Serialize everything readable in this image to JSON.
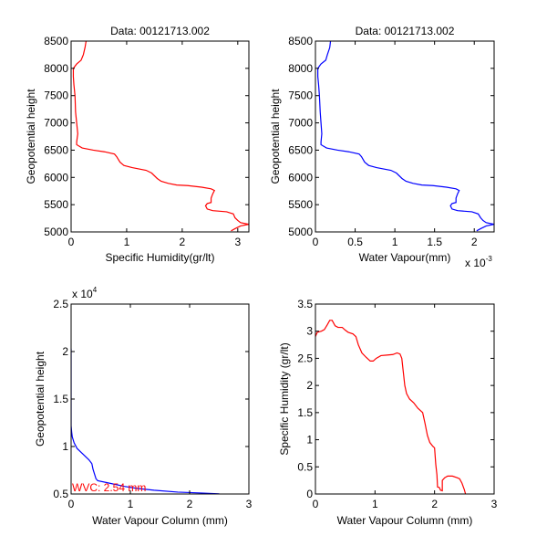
{
  "figure": {
    "background": "#ffffff"
  },
  "chart_data": [
    {
      "id": "specific-humidity-profile",
      "type": "line",
      "title": "Data: 00121713.002",
      "xlabel": "Specific Humidity(gr/lt)",
      "ylabel": "Geopotential height",
      "xlim": [
        0,
        3.2
      ],
      "ylim": [
        5000,
        8500
      ],
      "xticks": [
        0,
        1,
        2,
        3
      ],
      "xtick_labels": [
        "0",
        "1",
        "2",
        "3"
      ],
      "yticks": [
        5000,
        5500,
        6000,
        6500,
        7000,
        7500,
        8000,
        8500
      ],
      "ytick_labels": [
        "5000",
        "5500",
        "6000",
        "6500",
        "7000",
        "7500",
        "8000",
        "8500"
      ],
      "x_exponent_label": "",
      "y_exponent_label": "",
      "grid": false,
      "series": [
        {
          "name": "specific humidity",
          "color": "#ff0000",
          "points": [
            [
              2.88,
              5020
            ],
            [
              2.95,
              5060
            ],
            [
              3.05,
              5110
            ],
            [
              3.2,
              5140
            ],
            [
              3.05,
              5170
            ],
            [
              3.0,
              5210
            ],
            [
              2.95,
              5260
            ],
            [
              2.92,
              5330
            ],
            [
              2.8,
              5370
            ],
            [
              2.55,
              5390
            ],
            [
              2.45,
              5420
            ],
            [
              2.42,
              5480
            ],
            [
              2.45,
              5520
            ],
            [
              2.52,
              5540
            ],
            [
              2.52,
              5620
            ],
            [
              2.55,
              5700
            ],
            [
              2.58,
              5760
            ],
            [
              2.52,
              5790
            ],
            [
              2.35,
              5820
            ],
            [
              2.1,
              5850
            ],
            [
              1.9,
              5860
            ],
            [
              1.75,
              5890
            ],
            [
              1.62,
              5930
            ],
            [
              1.55,
              5980
            ],
            [
              1.45,
              6080
            ],
            [
              1.35,
              6130
            ],
            [
              1.1,
              6180
            ],
            [
              0.95,
              6220
            ],
            [
              0.88,
              6280
            ],
            [
              0.82,
              6380
            ],
            [
              0.78,
              6430
            ],
            [
              0.6,
              6470
            ],
            [
              0.4,
              6500
            ],
            [
              0.2,
              6540
            ],
            [
              0.1,
              6600
            ],
            [
              0.1,
              6650
            ],
            [
              0.12,
              6800
            ],
            [
              0.1,
              7000
            ],
            [
              0.08,
              7200
            ],
            [
              0.07,
              7500
            ],
            [
              0.05,
              7700
            ],
            [
              0.04,
              7850
            ],
            [
              0.04,
              8000
            ],
            [
              0.1,
              8080
            ],
            [
              0.18,
              8150
            ],
            [
              0.22,
              8250
            ],
            [
              0.25,
              8380
            ],
            [
              0.27,
              8500
            ]
          ]
        }
      ]
    },
    {
      "id": "water-vapour-profile",
      "type": "line",
      "title": "Data: 00121713.002",
      "xlabel": "Water Vapour(mm)",
      "ylabel": "Geopotential height",
      "xlim": [
        0,
        0.00225
      ],
      "ylim": [
        5000,
        8500
      ],
      "xticks": [
        0,
        0.0005,
        0.001,
        0.0015,
        0.002
      ],
      "xtick_labels": [
        "0",
        "0.5",
        "1",
        "1.5",
        "2"
      ],
      "yticks": [
        5000,
        5500,
        6000,
        6500,
        7000,
        7500,
        8000,
        8500
      ],
      "ytick_labels": [
        "5000",
        "5500",
        "6000",
        "6500",
        "7000",
        "7500",
        "8000",
        "8500"
      ],
      "x_exponent_label": "x 10",
      "x_exponent_power": "-3",
      "y_exponent_label": "",
      "grid": false,
      "series": [
        {
          "name": "water vapour",
          "color": "#0000ff",
          "points": [
            [
              0.00203,
              5020
            ],
            [
              0.00208,
              5060
            ],
            [
              0.00215,
              5110
            ],
            [
              0.00225,
              5140
            ],
            [
              0.00215,
              5170
            ],
            [
              0.00211,
              5210
            ],
            [
              0.00208,
              5260
            ],
            [
              0.00205,
              5330
            ],
            [
              0.00197,
              5370
            ],
            [
              0.00179,
              5390
            ],
            [
              0.00172,
              5420
            ],
            [
              0.0017,
              5480
            ],
            [
              0.00172,
              5520
            ],
            [
              0.00177,
              5540
            ],
            [
              0.00177,
              5620
            ],
            [
              0.00179,
              5700
            ],
            [
              0.00181,
              5760
            ],
            [
              0.00177,
              5790
            ],
            [
              0.00165,
              5820
            ],
            [
              0.00148,
              5850
            ],
            [
              0.00134,
              5860
            ],
            [
              0.00123,
              5890
            ],
            [
              0.00114,
              5930
            ],
            [
              0.00109,
              5980
            ],
            [
              0.00102,
              6080
            ],
            [
              0.00095,
              6130
            ],
            [
              0.00077,
              6180
            ],
            [
              0.00067,
              6220
            ],
            [
              0.00062,
              6280
            ],
            [
              0.00058,
              6380
            ],
            [
              0.00055,
              6430
            ],
            [
              0.00042,
              6470
            ],
            [
              0.00028,
              6500
            ],
            [
              0.00014,
              6540
            ],
            [
              7e-05,
              6600
            ],
            [
              7e-05,
              6650
            ],
            [
              8e-05,
              6800
            ],
            [
              7e-05,
              7000
            ],
            [
              6e-05,
              7200
            ],
            [
              5e-05,
              7500
            ],
            [
              4e-05,
              7700
            ],
            [
              3e-05,
              7850
            ],
            [
              3e-05,
              8000
            ],
            [
              7e-05,
              8080
            ],
            [
              0.00013,
              8150
            ],
            [
              0.00015,
              8250
            ],
            [
              0.00018,
              8380
            ],
            [
              0.00019,
              8500
            ]
          ]
        }
      ]
    },
    {
      "id": "wvc-vs-height",
      "type": "line",
      "title": "",
      "xlabel": "Water Vapour Column (mm)",
      "ylabel": "Geopotential height",
      "xlim": [
        0,
        3
      ],
      "ylim": [
        0.5,
        2.5
      ],
      "xticks": [
        0,
        1,
        2,
        3
      ],
      "xtick_labels": [
        "0",
        "1",
        "2",
        "3"
      ],
      "yticks": [
        0.5,
        1,
        1.5,
        2,
        2.5
      ],
      "ytick_labels": [
        "0.5",
        "1",
        "1.5",
        "2",
        "2.5"
      ],
      "x_exponent_label": "",
      "y_exponent_label": "x 10",
      "y_exponent_power": "4",
      "grid": false,
      "annotation": {
        "text": "WVC: 2.54 mm",
        "color": "#ff0000",
        "x": 0.0,
        "y": 0.53
      },
      "series": [
        {
          "name": "water vapour column",
          "color": "#0000ff",
          "points": [
            [
              2.5,
              0.502
            ],
            [
              2.2,
              0.51
            ],
            [
              1.8,
              0.52
            ],
            [
              1.4,
              0.54
            ],
            [
              1.1,
              0.56
            ],
            [
              0.9,
              0.58
            ],
            [
              0.6,
              0.62
            ],
            [
              0.45,
              0.64
            ],
            [
              0.42,
              0.66
            ],
            [
              0.4,
              0.7
            ],
            [
              0.37,
              0.76
            ],
            [
              0.35,
              0.82
            ],
            [
              0.3,
              0.86
            ],
            [
              0.2,
              0.92
            ],
            [
              0.1,
              0.98
            ],
            [
              0.05,
              1.04
            ],
            [
              0.02,
              1.1
            ],
            [
              0.01,
              1.15
            ],
            [
              0.0,
              1.22
            ],
            [
              0.0,
              1.5
            ],
            [
              0.0,
              1.8
            ],
            [
              0.0,
              2.03
            ]
          ]
        }
      ]
    },
    {
      "id": "sh-vs-wvc",
      "type": "line",
      "title": "",
      "xlabel": "Water Vapour Column (mm)",
      "ylabel": "Specific Humidity (gr/lt)",
      "xlim": [
        0,
        3
      ],
      "ylim": [
        0,
        3.5
      ],
      "xticks": [
        0,
        1,
        2,
        3
      ],
      "xtick_labels": [
        "0",
        "1",
        "2",
        "3"
      ],
      "yticks": [
        0,
        0.5,
        1,
        1.5,
        2,
        2.5,
        3,
        3.5
      ],
      "ytick_labels": [
        "0",
        "0.5",
        "1",
        "1.5",
        "2",
        "2.5",
        "3",
        "3.5"
      ],
      "x_exponent_label": "",
      "y_exponent_label": "",
      "grid": false,
      "series": [
        {
          "name": "specific humidity vs wvc",
          "color": "#ff0000",
          "points": [
            [
              0.0,
              2.9
            ],
            [
              0.03,
              2.98
            ],
            [
              0.1,
              3.0
            ],
            [
              0.15,
              3.03
            ],
            [
              0.2,
              3.12
            ],
            [
              0.24,
              3.2
            ],
            [
              0.28,
              3.2
            ],
            [
              0.33,
              3.1
            ],
            [
              0.38,
              3.07
            ],
            [
              0.45,
              3.07
            ],
            [
              0.5,
              3.02
            ],
            [
              0.55,
              2.98
            ],
            [
              0.63,
              2.95
            ],
            [
              0.68,
              2.9
            ],
            [
              0.72,
              2.75
            ],
            [
              0.78,
              2.6
            ],
            [
              0.85,
              2.52
            ],
            [
              0.92,
              2.45
            ],
            [
              0.97,
              2.45
            ],
            [
              1.02,
              2.5
            ],
            [
              1.1,
              2.55
            ],
            [
              1.2,
              2.56
            ],
            [
              1.3,
              2.57
            ],
            [
              1.37,
              2.6
            ],
            [
              1.42,
              2.58
            ],
            [
              1.45,
              2.5
            ],
            [
              1.47,
              2.3
            ],
            [
              1.5,
              2.0
            ],
            [
              1.53,
              1.85
            ],
            [
              1.58,
              1.75
            ],
            [
              1.65,
              1.68
            ],
            [
              1.72,
              1.58
            ],
            [
              1.8,
              1.5
            ],
            [
              1.84,
              1.3
            ],
            [
              1.88,
              1.08
            ],
            [
              1.92,
              0.95
            ],
            [
              1.97,
              0.88
            ],
            [
              2.0,
              0.85
            ],
            [
              2.02,
              0.55
            ],
            [
              2.04,
              0.35
            ],
            [
              2.05,
              0.13
            ],
            [
              2.08,
              0.12
            ],
            [
              2.1,
              0.07
            ],
            [
              2.13,
              0.06
            ],
            [
              2.13,
              0.25
            ],
            [
              2.17,
              0.3
            ],
            [
              2.22,
              0.33
            ],
            [
              2.3,
              0.33
            ],
            [
              2.38,
              0.3
            ],
            [
              2.42,
              0.28
            ],
            [
              2.46,
              0.2
            ],
            [
              2.5,
              0.08
            ],
            [
              2.52,
              0.0
            ]
          ]
        }
      ]
    }
  ]
}
